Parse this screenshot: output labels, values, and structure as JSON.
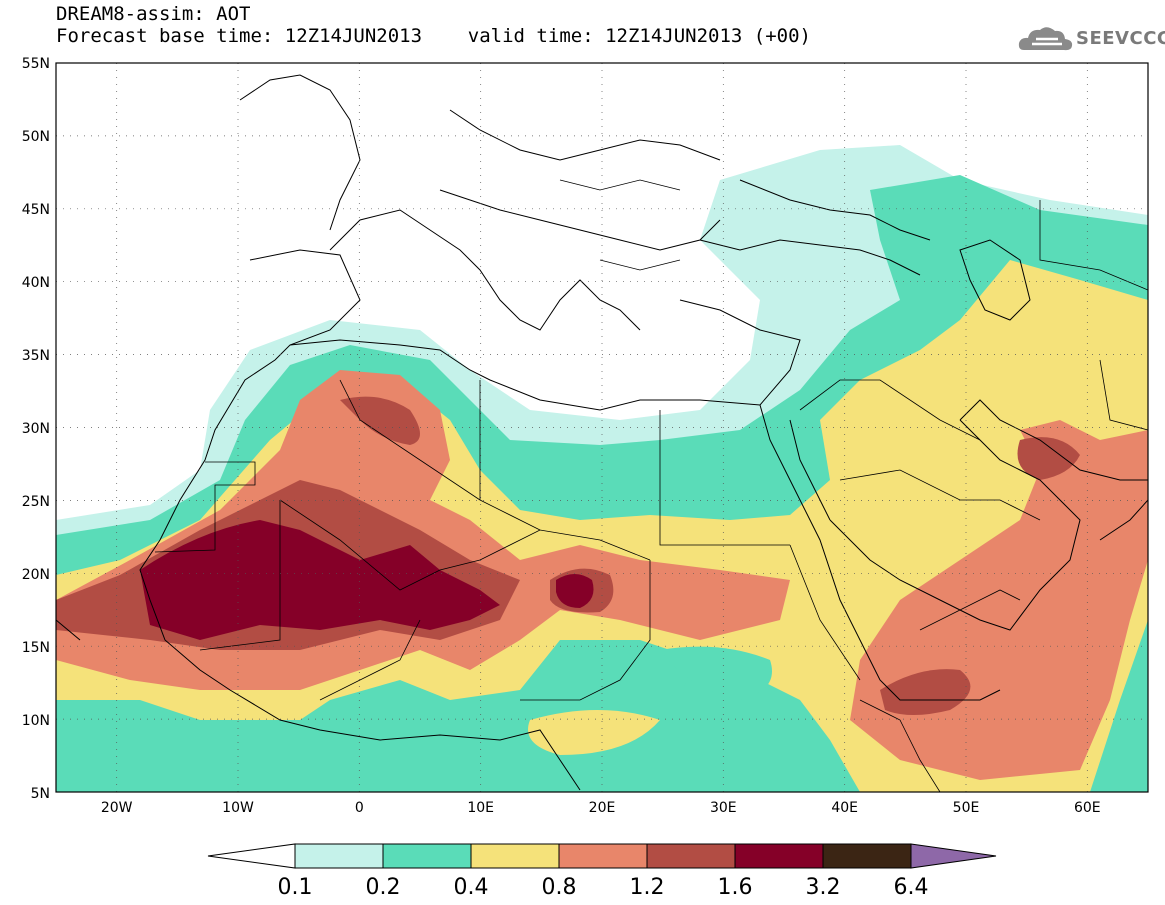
{
  "header": {
    "title_line1": "DREAM8-assim: AOT",
    "title_line2": "Forecast base time: 12Z14JUN2013    valid time: 12Z14JUN2013 (+00)",
    "logo_text": "SEEVCCC"
  },
  "map": {
    "lat_labels": [
      "55N",
      "50N",
      "45N",
      "40N",
      "35N",
      "30N",
      "25N",
      "20N",
      "15N",
      "10N",
      "5N"
    ],
    "lon_labels": [
      "20W",
      "10W",
      "0",
      "10E",
      "20E",
      "30E",
      "40E",
      "50E",
      "60E"
    ],
    "lat_range": [
      5,
      55
    ],
    "lon_range": [
      -25,
      65
    ],
    "field": "AOT"
  },
  "colorbar": {
    "levels": [
      "0.1",
      "0.2",
      "0.4",
      "0.8",
      "1.2",
      "1.6",
      "3.2",
      "6.4"
    ],
    "colors": [
      "#c5f2ea",
      "#5adcb8",
      "#f5e27a",
      "#e8866a",
      "#b24d44",
      "#850028",
      "#3b2514",
      "#8e68a8"
    ]
  }
}
